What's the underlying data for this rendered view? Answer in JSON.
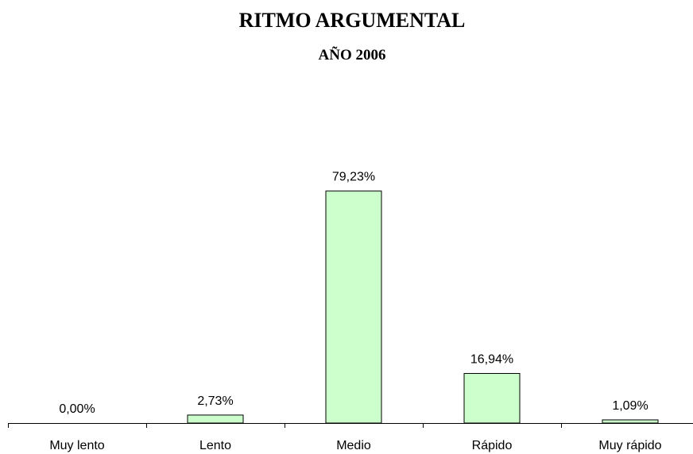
{
  "chart_data": {
    "type": "bar",
    "title": "RITMO ARGUMENTAL",
    "subtitle": "AÑO 2006",
    "categories": [
      "Muy lento",
      "Lento",
      "Medio",
      "Rápido",
      "Muy rápido"
    ],
    "values": [
      0.0,
      2.73,
      79.23,
      16.94,
      1.09
    ],
    "data_labels": [
      "0,00%",
      "2,73%",
      "79,23%",
      "16,94%",
      "1,09%"
    ],
    "xlabel": "",
    "ylabel": "",
    "ylim": [
      0,
      100
    ],
    "grid": false,
    "legend": "none",
    "colors": {
      "bar_fill": "#ccffcc",
      "bar_stroke": "#000000",
      "axis": "#000000"
    }
  }
}
